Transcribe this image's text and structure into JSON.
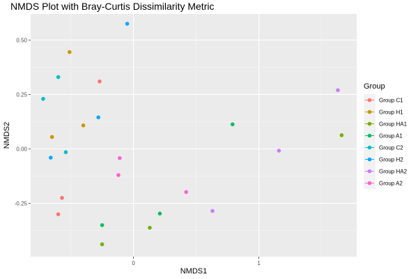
{
  "chart_data": {
    "type": "scatter",
    "title": "NMDS Plot with Bray-Curtis Dissimilarity Metric",
    "xlabel": "NMDS1",
    "ylabel": "NMDS2",
    "xlim": [
      -0.82,
      1.78
    ],
    "ylim": [
      -0.495,
      0.62
    ],
    "x_ticks": [
      {
        "value": 0,
        "label": "0"
      },
      {
        "value": 1,
        "label": "1"
      }
    ],
    "y_ticks": [
      {
        "value": 0.5,
        "label": "0.50"
      },
      {
        "value": 0.25,
        "label": "0.25"
      },
      {
        "value": 0.0,
        "label": "0.00"
      },
      {
        "value": -0.25,
        "label": "-0.25"
      }
    ],
    "grid": true,
    "legend_title": "Group",
    "legend_position": "right",
    "series": [
      {
        "name": "Group C1",
        "color": "#F8766D",
        "points": [
          [
            -0.27,
            0.31
          ],
          [
            -0.57,
            -0.225
          ],
          [
            -0.6,
            -0.3
          ]
        ]
      },
      {
        "name": "Group H1",
        "color": "#CD9600",
        "points": [
          [
            -0.51,
            0.445
          ],
          [
            -0.4,
            0.108
          ],
          [
            -0.65,
            0.055
          ]
        ]
      },
      {
        "name": "Group HA1",
        "color": "#7CAE00",
        "points": [
          [
            1.66,
            0.063
          ],
          [
            0.13,
            -0.362
          ],
          [
            -0.25,
            -0.438
          ]
        ]
      },
      {
        "name": "Group A1",
        "color": "#00BE67",
        "points": [
          [
            0.79,
            0.113
          ],
          [
            0.21,
            -0.297
          ],
          [
            -0.25,
            -0.35
          ]
        ]
      },
      {
        "name": "Group C2",
        "color": "#00BFC4",
        "points": [
          [
            -0.6,
            0.33
          ],
          [
            -0.72,
            0.23
          ],
          [
            -0.54,
            -0.015
          ]
        ]
      },
      {
        "name": "Group H2",
        "color": "#00A9FF",
        "points": [
          [
            -0.05,
            0.575
          ],
          [
            -0.28,
            0.145
          ],
          [
            -0.66,
            -0.04
          ]
        ]
      },
      {
        "name": "Group HA2",
        "color": "#C77CFF",
        "points": [
          [
            1.63,
            0.27
          ],
          [
            1.16,
            -0.008
          ],
          [
            0.63,
            -0.285
          ]
        ]
      },
      {
        "name": "Group A2",
        "color": "#FF61CC",
        "points": [
          [
            -0.11,
            -0.042
          ],
          [
            -0.12,
            -0.12
          ],
          [
            0.42,
            -0.198
          ]
        ]
      }
    ]
  }
}
